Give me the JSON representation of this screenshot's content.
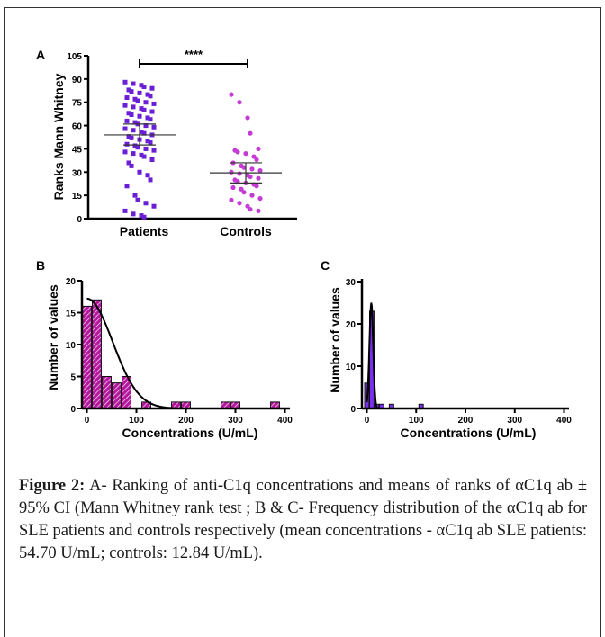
{
  "colors": {
    "patients": "#6a1fd6",
    "controls": "#c63ad6",
    "histB": "#b5179e",
    "histC": "#7a2ff0",
    "axis": "#000000"
  },
  "panelA": {
    "label": "A",
    "ylabel": "Ranks Mann Whitney",
    "yticks": [
      "0",
      "15",
      "30",
      "45",
      "60",
      "75",
      "90",
      "105"
    ],
    "groups": [
      "Patients",
      "Controls"
    ],
    "significance": "****",
    "chart_data": {
      "type": "scatter",
      "ylim": [
        0,
        105
      ],
      "series": [
        {
          "name": "Patients",
          "mean": 54,
          "ci": [
            47.5,
            61
          ],
          "values": [
            88,
            87,
            86,
            85,
            84,
            83,
            82,
            81,
            80,
            79,
            78,
            77,
            76,
            75,
            74,
            73,
            72,
            71,
            70,
            69,
            68,
            67,
            66,
            65,
            64,
            63,
            62,
            61,
            60,
            59,
            58,
            57,
            56,
            55,
            54,
            53,
            52,
            51,
            50,
            49,
            48,
            47,
            46,
            45,
            44,
            43,
            42,
            41,
            40,
            38,
            36,
            34,
            30,
            28,
            25,
            21,
            15,
            12,
            10,
            8,
            5,
            3,
            2,
            1
          ]
        },
        {
          "name": "Controls",
          "mean": 29.5,
          "ci": [
            23,
            36
          ],
          "values": [
            80,
            75,
            65,
            55,
            45,
            44,
            43,
            42,
            40,
            38,
            36,
            34,
            33,
            32,
            31,
            30,
            29,
            28,
            27,
            26,
            25,
            24,
            23,
            22,
            21,
            20,
            19,
            17,
            15,
            13,
            12,
            10,
            8,
            6,
            5
          ]
        }
      ]
    }
  },
  "panelB": {
    "label": "B",
    "ylabel": "Number of values",
    "xlabel": "Concentrations (U/mL)",
    "yticks": [
      "0",
      "5",
      "10",
      "15",
      "20"
    ],
    "xticks": [
      "0",
      "100",
      "200",
      "300",
      "400"
    ],
    "chart_data": {
      "type": "bar",
      "xlim": [
        -10,
        410
      ],
      "ylim": [
        0,
        20
      ],
      "bars": [
        [
          0,
          16
        ],
        [
          20,
          17
        ],
        [
          40,
          5
        ],
        [
          60,
          4
        ],
        [
          80,
          5
        ],
        [
          120,
          1
        ],
        [
          180,
          1
        ],
        [
          200,
          1
        ],
        [
          280,
          1
        ],
        [
          300,
          1
        ],
        [
          380,
          1
        ]
      ],
      "binwidth": 18,
      "curve": {
        "type": "gaussian",
        "amplitude": 17.2,
        "mean": 0,
        "sd": 52
      }
    }
  },
  "panelC": {
    "label": "C",
    "ylabel": "Number of values",
    "xlabel": "Concentrations (U/mL)",
    "yticks": [
      "0",
      "10",
      "20",
      "30"
    ],
    "xticks": [
      "0",
      "100",
      "200",
      "300",
      "400"
    ],
    "chart_data": {
      "type": "bar",
      "xlim": [
        -10,
        410
      ],
      "ylim": [
        0,
        30
      ],
      "bars": [
        [
          0,
          6
        ],
        [
          10,
          23
        ],
        [
          20,
          1
        ],
        [
          30,
          1
        ],
        [
          50,
          1
        ],
        [
          110,
          1
        ]
      ],
      "binwidth": 9,
      "curve": {
        "type": "gaussian",
        "amplitude": 25,
        "mean": 9,
        "sd": 3.8
      }
    }
  },
  "caption": {
    "label": "Figure 2:",
    "text": " A- Ranking of anti-C1q concentrations and means of ranks of αC1q ab ± 95% CI (Mann Whitney rank test ; B & C- Frequency distribution of the αC1q ab for SLE patients and controls respectively (mean concentrations - αC1q ab SLE patients: 54.70 U/mL; controls: 12.84 U/mL)."
  }
}
